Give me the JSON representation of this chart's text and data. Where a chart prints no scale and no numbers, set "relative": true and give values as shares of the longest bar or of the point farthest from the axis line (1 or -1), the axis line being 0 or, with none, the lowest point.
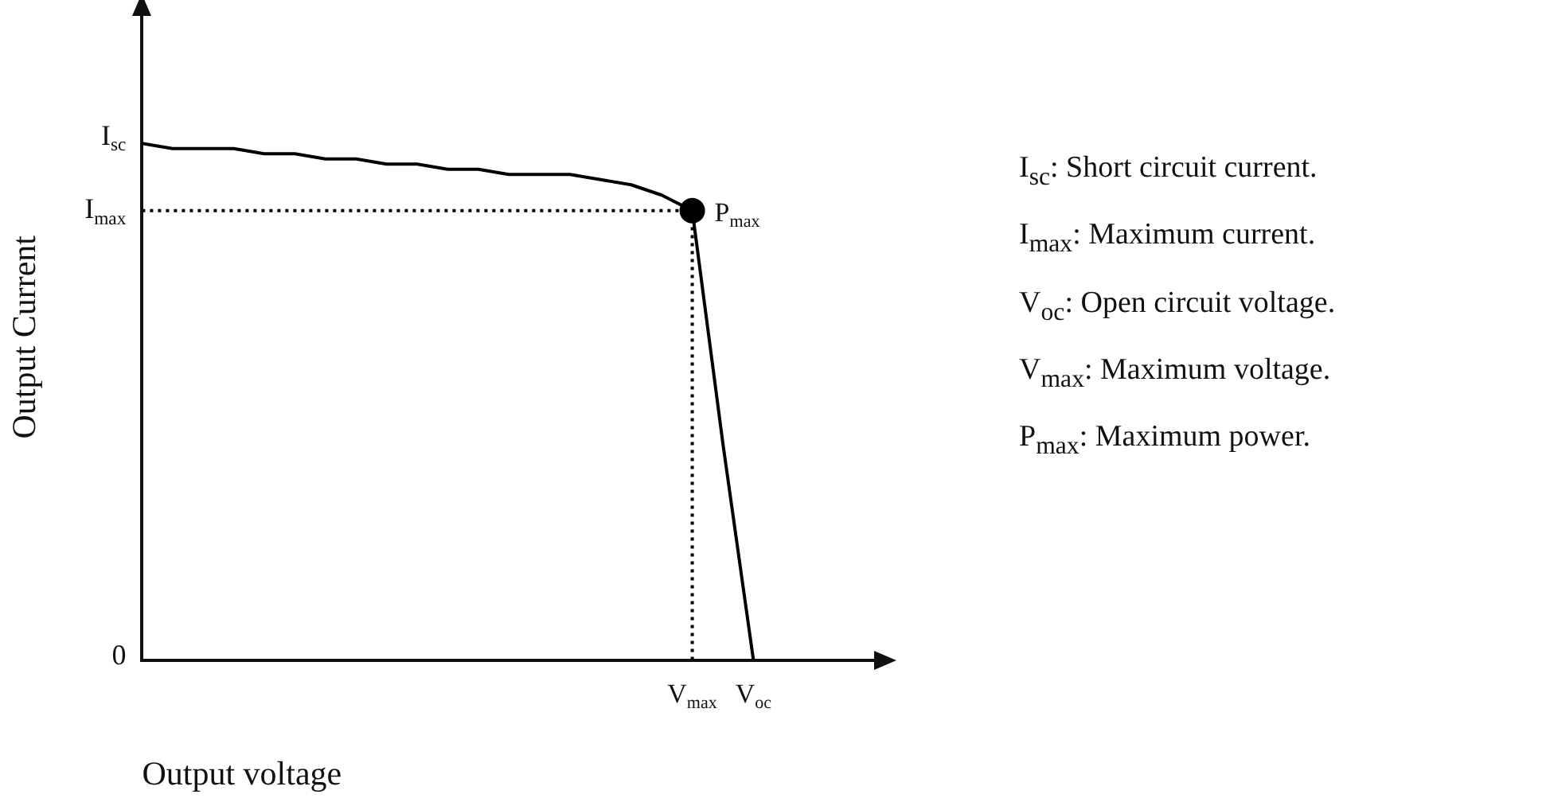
{
  "chart_data": {
    "type": "line",
    "relative": true,
    "xlabel": "Output voltage",
    "ylabel": "Output Current",
    "grid": false,
    "legend": false,
    "categories": [
      null,
      null,
      null,
      null,
      null,
      null,
      null,
      null,
      null,
      null,
      null,
      null,
      null,
      null,
      null,
      null,
      null,
      null,
      "V$_{max}$",
      null,
      "V$_{oc}$",
      null,
      null,
      null,
      null
    ],
    "series": [
      {
        "color": "#000000",
        "marker": "none",
        "line_style": "solid",
        "values": [
          1,
          0.99,
          0.99,
          0.99,
          0.98,
          0.98,
          0.97,
          0.97,
          0.96,
          0.96,
          0.95,
          0.95,
          0.94,
          0.94,
          0.94,
          0.93,
          0.92,
          0.9,
          0.87,
          0.42,
          0,
          null,
          null,
          null,
          null
        ]
      },
      {
        "type": "scatter",
        "color": "#000000",
        "marker": "circle",
        "x": [
          "V$_{max}$"
        ],
        "values": [
          0.87
        ]
      }
    ],
    "ref_lines": [
      {
        "axis": "y",
        "value": 0.87,
        "label": "I$_{max}$",
        "color": "#000000",
        "line_style": "dotted"
      },
      {
        "axis": "x",
        "value": "V$_{max}$",
        "color": "#000000",
        "line_style": "dotted"
      }
    ],
    "annotations": [
      "I$_{sc}$",
      "0",
      {
        "text": "P$_{max}$",
        "x": "V$_{max}$",
        "y": 0.87
      },
      "I$_{sc}$: Short circuit current.",
      "I$_{max}$: Maximum current.",
      "V$_{oc}$:  Open circuit voltage.",
      "V$_{max}$:  Maximum voltage.",
      "P$_{max}$:  Maximum power."
    ]
  }
}
